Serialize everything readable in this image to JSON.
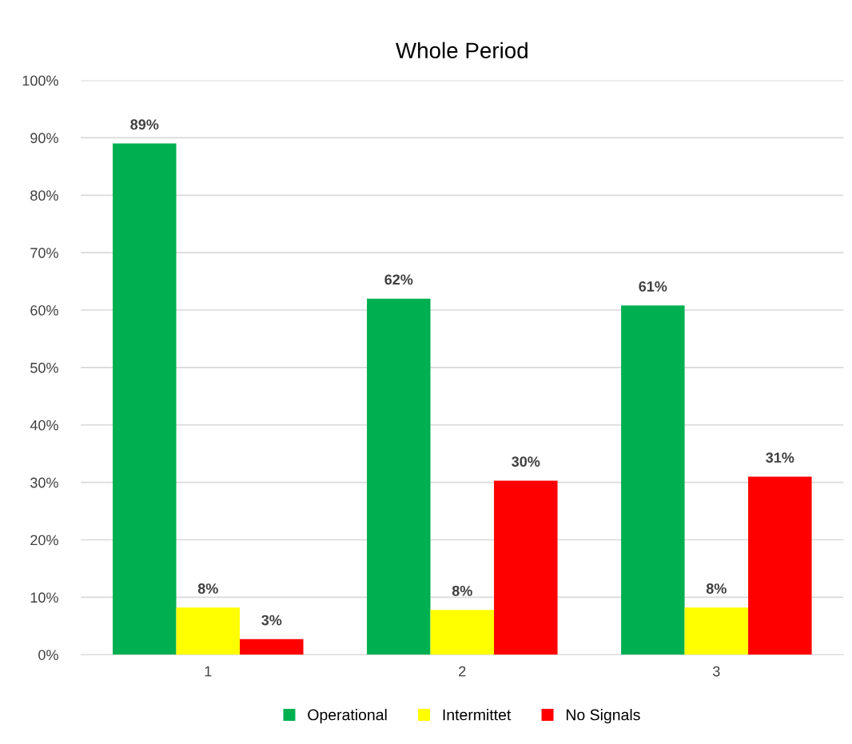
{
  "chart_data": {
    "type": "bar",
    "title": "Whole Period",
    "categories": [
      "1",
      "2",
      "3"
    ],
    "series": [
      {
        "name": "Operational",
        "color": "#00b050",
        "values": [
          89,
          62,
          60.8
        ],
        "value_labels": [
          "89%",
          "62%",
          "61%"
        ]
      },
      {
        "name": "Intermittet",
        "color": "#ffff00",
        "values": [
          8.2,
          7.8,
          8.2
        ],
        "value_labels": [
          "8%",
          "8%",
          "8%"
        ]
      },
      {
        "name": "No Signals",
        "color": "#ff0000",
        "values": [
          2.7,
          30.3,
          31
        ],
        "value_labels": [
          "3%",
          "30%",
          "31%"
        ]
      }
    ],
    "ylim": [
      0,
      100
    ],
    "yticks": [
      {
        "value": 0,
        "label": "0%"
      },
      {
        "value": 10,
        "label": "10%"
      },
      {
        "value": 20,
        "label": "20%"
      },
      {
        "value": 30,
        "label": "30%"
      },
      {
        "value": 40,
        "label": "40%"
      },
      {
        "value": 50,
        "label": "50%"
      },
      {
        "value": 60,
        "label": "60%"
      },
      {
        "value": 70,
        "label": "70%"
      },
      {
        "value": 80,
        "label": "80%"
      },
      {
        "value": 90,
        "label": "90%"
      },
      {
        "value": 100,
        "label": "100%"
      }
    ],
    "grid": "y",
    "legend": "bottom"
  }
}
